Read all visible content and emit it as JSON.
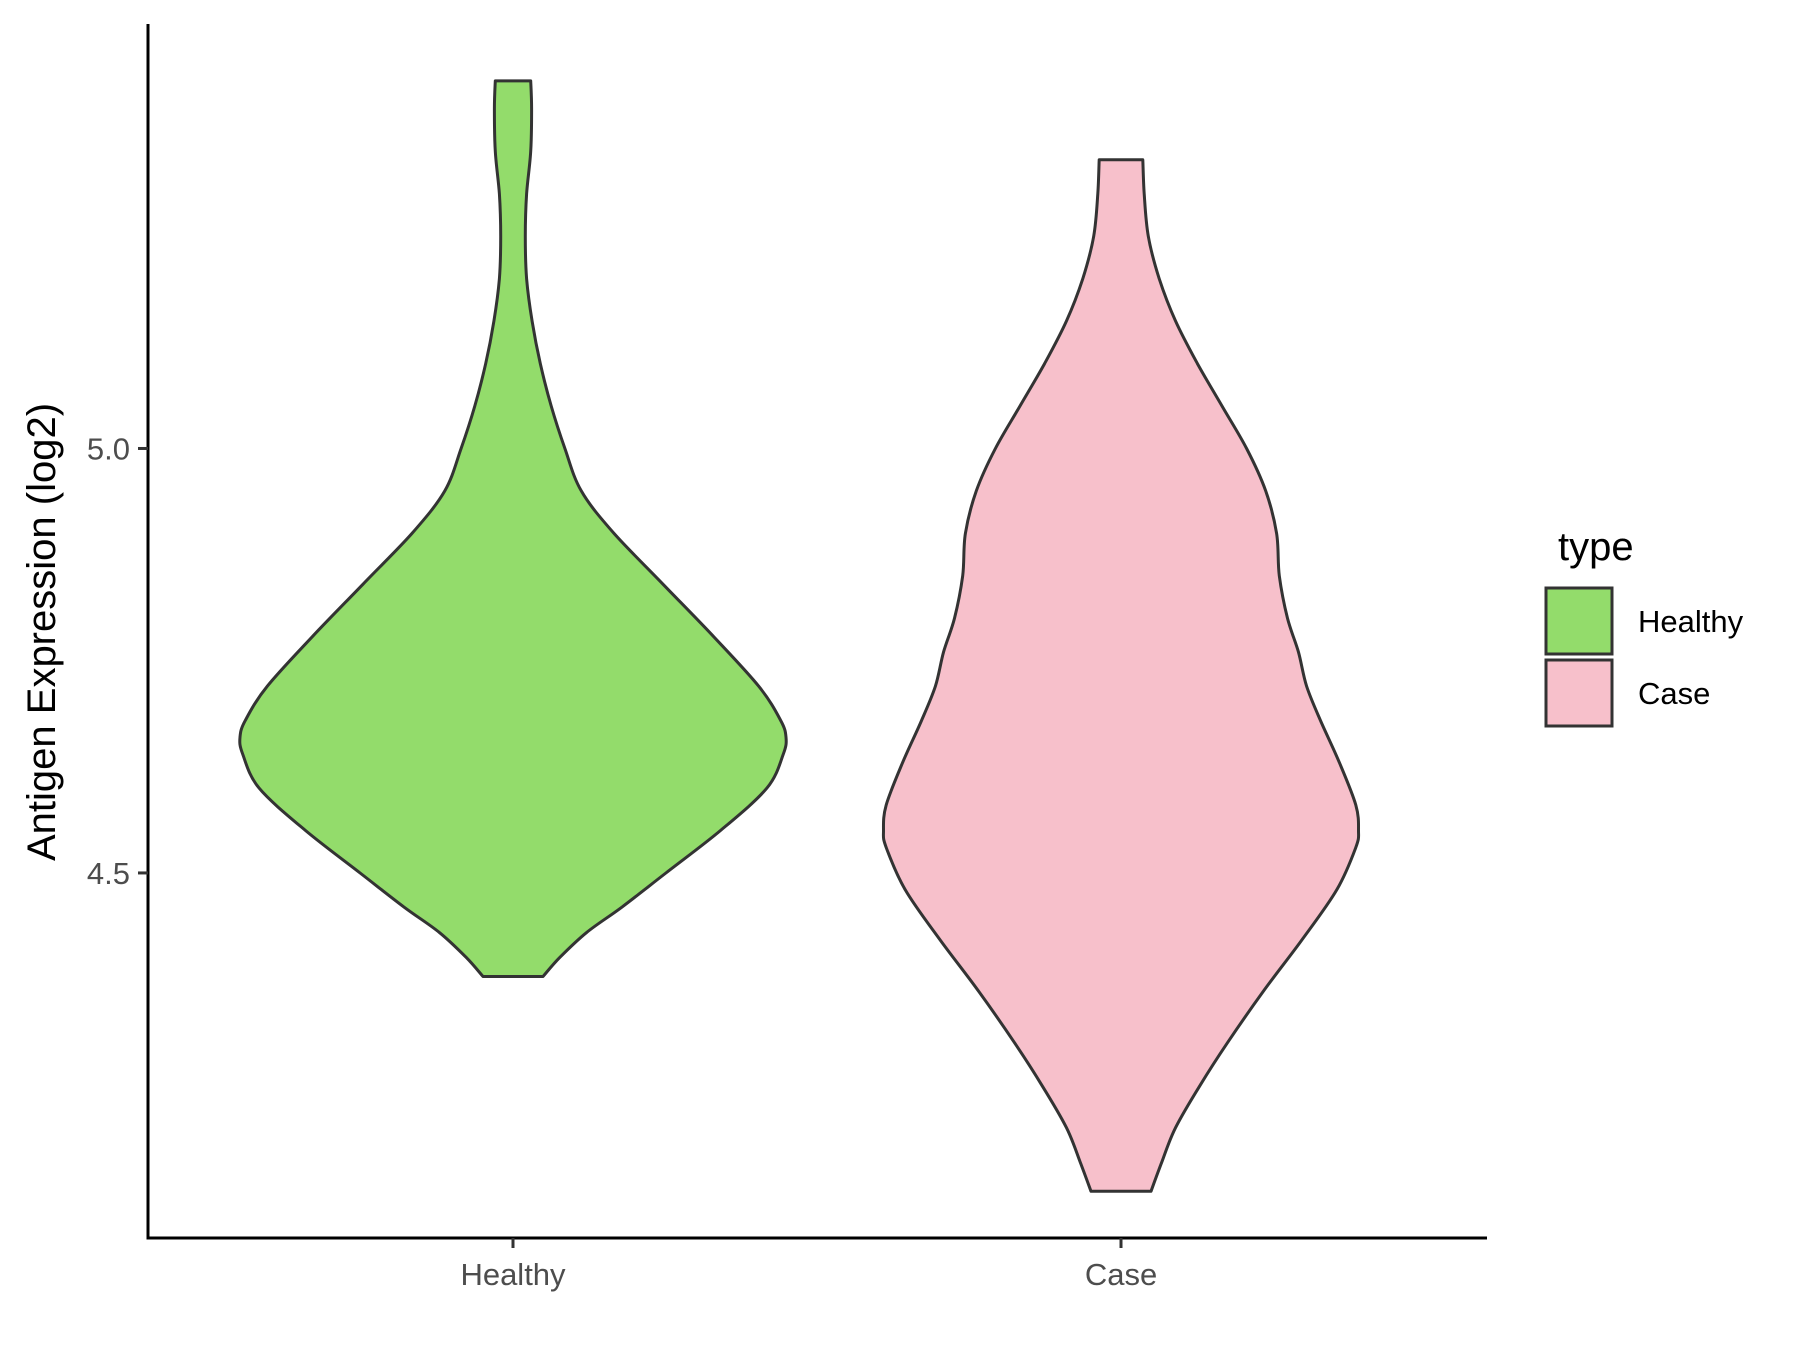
{
  "chart_data": {
    "type": "violin",
    "title": "",
    "xlabel": "",
    "ylabel": "Antigen Expression (log2)",
    "y_ticks": [
      4.5,
      5.0
    ],
    "y_tick_labels": [
      "4.5",
      "5.0"
    ],
    "ylim": [
      4.07,
      5.5
    ],
    "grid": false,
    "categories": [
      "Healthy",
      "Case"
    ],
    "legend": {
      "title": "type",
      "placement": "right",
      "entries": [
        "Healthy",
        "Case"
      ]
    },
    "series": [
      {
        "name": "Healthy",
        "color": "#93DC6B",
        "min": 4.378,
        "max": 5.433,
        "density_profile": [
          [
            4.378,
            0.11
          ],
          [
            4.4,
            0.17
          ],
          [
            4.43,
            0.27
          ],
          [
            4.46,
            0.4
          ],
          [
            4.5,
            0.56
          ],
          [
            4.55,
            0.76
          ],
          [
            4.6,
            0.93
          ],
          [
            4.64,
            0.99
          ],
          [
            4.66,
            1.0
          ],
          [
            4.68,
            0.98
          ],
          [
            4.72,
            0.9
          ],
          [
            4.78,
            0.73
          ],
          [
            4.84,
            0.55
          ],
          [
            4.9,
            0.37
          ],
          [
            4.95,
            0.25
          ],
          [
            5.0,
            0.19
          ],
          [
            5.05,
            0.14
          ],
          [
            5.1,
            0.1
          ],
          [
            5.15,
            0.07
          ],
          [
            5.2,
            0.05
          ],
          [
            5.25,
            0.045
          ],
          [
            5.3,
            0.05
          ],
          [
            5.35,
            0.065
          ],
          [
            5.4,
            0.068
          ],
          [
            5.433,
            0.065
          ]
        ]
      },
      {
        "name": "Case",
        "color": "#F7C0CB",
        "min": 4.125,
        "max": 5.34,
        "density_profile": [
          [
            4.125,
            0.11
          ],
          [
            4.16,
            0.15
          ],
          [
            4.2,
            0.2
          ],
          [
            4.25,
            0.29
          ],
          [
            4.3,
            0.39
          ],
          [
            4.36,
            0.52
          ],
          [
            4.42,
            0.66
          ],
          [
            4.48,
            0.79
          ],
          [
            4.53,
            0.86
          ],
          [
            4.55,
            0.87
          ],
          [
            4.58,
            0.86
          ],
          [
            4.63,
            0.8
          ],
          [
            4.68,
            0.73
          ],
          [
            4.72,
            0.68
          ],
          [
            4.76,
            0.65
          ],
          [
            4.8,
            0.61
          ],
          [
            4.85,
            0.58
          ],
          [
            4.9,
            0.57
          ],
          [
            4.95,
            0.53
          ],
          [
            5.0,
            0.46
          ],
          [
            5.05,
            0.37
          ],
          [
            5.1,
            0.28
          ],
          [
            5.15,
            0.2
          ],
          [
            5.2,
            0.14
          ],
          [
            5.25,
            0.1
          ],
          [
            5.3,
            0.085
          ],
          [
            5.34,
            0.08
          ]
        ]
      }
    ]
  }
}
